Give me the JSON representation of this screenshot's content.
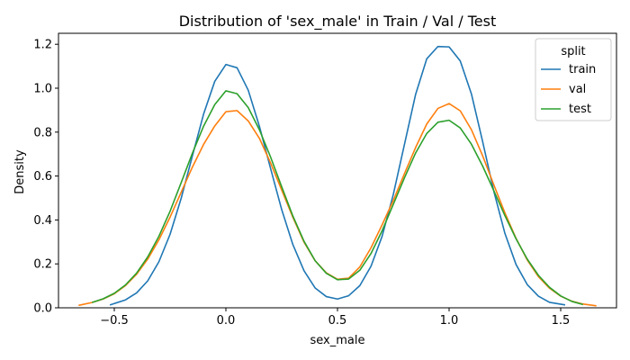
{
  "chart_data": {
    "type": "line",
    "title": "Distribution of 'sex_male' in Train / Val / Test",
    "xlabel": "sex_male",
    "ylabel": "Density",
    "xlim": [
      -0.75,
      1.75
    ],
    "ylim": [
      0,
      1.25
    ],
    "x_ticks": [
      -0.5,
      0.0,
      0.5,
      1.0,
      1.5
    ],
    "x_tick_labels": [
      "−0.5",
      "0.0",
      "0.5",
      "1.0",
      "1.5"
    ],
    "y_ticks": [
      0.0,
      0.2,
      0.4,
      0.6,
      0.8,
      1.0,
      1.2
    ],
    "y_tick_labels": [
      "0.0",
      "0.2",
      "0.4",
      "0.6",
      "0.8",
      "1.0",
      "1.2"
    ],
    "grid": false,
    "legend": {
      "title": "split",
      "placement": "top-right"
    },
    "series": [
      {
        "name": "train",
        "color": "#1f77b4",
        "x": [
          -0.52,
          -0.45,
          -0.4,
          -0.35,
          -0.3,
          -0.25,
          -0.2,
          -0.15,
          -0.1,
          -0.05,
          0.0,
          0.05,
          0.1,
          0.15,
          0.2,
          0.25,
          0.3,
          0.35,
          0.4,
          0.45,
          0.5,
          0.55,
          0.6,
          0.65,
          0.7,
          0.75,
          0.8,
          0.85,
          0.9,
          0.95,
          1.0,
          1.05,
          1.1,
          1.15,
          1.2,
          1.25,
          1.3,
          1.35,
          1.4,
          1.45,
          1.52
        ],
        "y": [
          0.013,
          0.036,
          0.068,
          0.123,
          0.21,
          0.335,
          0.5,
          0.692,
          0.882,
          1.031,
          1.108,
          1.093,
          0.991,
          0.827,
          0.635,
          0.447,
          0.288,
          0.169,
          0.09,
          0.051,
          0.04,
          0.055,
          0.101,
          0.189,
          0.326,
          0.516,
          0.744,
          0.972,
          1.134,
          1.19,
          1.188,
          1.124,
          0.974,
          0.758,
          0.532,
          0.339,
          0.197,
          0.106,
          0.053,
          0.025,
          0.013
        ]
      },
      {
        "name": "val",
        "color": "#ff7f0e",
        "x": [
          -0.66,
          -0.6,
          -0.55,
          -0.5,
          -0.45,
          -0.4,
          -0.35,
          -0.3,
          -0.25,
          -0.2,
          -0.15,
          -0.1,
          -0.05,
          0.0,
          0.05,
          0.1,
          0.15,
          0.2,
          0.25,
          0.3,
          0.35,
          0.4,
          0.45,
          0.5,
          0.55,
          0.6,
          0.65,
          0.7,
          0.75,
          0.8,
          0.85,
          0.9,
          0.95,
          1.0,
          1.05,
          1.1,
          1.15,
          1.2,
          1.25,
          1.3,
          1.35,
          1.4,
          1.45,
          1.5,
          1.55,
          1.6,
          1.66
        ],
        "y": [
          0.011,
          0.024,
          0.04,
          0.064,
          0.101,
          0.153,
          0.222,
          0.31,
          0.413,
          0.527,
          0.641,
          0.744,
          0.828,
          0.893,
          0.898,
          0.851,
          0.772,
          0.66,
          0.536,
          0.412,
          0.299,
          0.214,
          0.159,
          0.13,
          0.135,
          0.186,
          0.273,
          0.378,
          0.489,
          0.611,
          0.73,
          0.837,
          0.908,
          0.93,
          0.897,
          0.811,
          0.693,
          0.561,
          0.432,
          0.316,
          0.218,
          0.142,
          0.089,
          0.053,
          0.03,
          0.017,
          0.009
        ]
      },
      {
        "name": "test",
        "color": "#2ca02c",
        "x": [
          -0.6,
          -0.55,
          -0.5,
          -0.45,
          -0.4,
          -0.35,
          -0.3,
          -0.25,
          -0.2,
          -0.15,
          -0.1,
          -0.05,
          0.0,
          0.05,
          0.1,
          0.15,
          0.2,
          0.25,
          0.3,
          0.35,
          0.4,
          0.45,
          0.5,
          0.55,
          0.6,
          0.65,
          0.7,
          0.75,
          0.8,
          0.85,
          0.9,
          0.95,
          1.0,
          1.05,
          1.1,
          1.15,
          1.2,
          1.25,
          1.3,
          1.35,
          1.4,
          1.45,
          1.5,
          1.55,
          1.6
        ],
        "y": [
          0.024,
          0.041,
          0.066,
          0.104,
          0.158,
          0.232,
          0.326,
          0.44,
          0.571,
          0.704,
          0.827,
          0.925,
          0.988,
          0.975,
          0.912,
          0.811,
          0.687,
          0.551,
          0.418,
          0.303,
          0.214,
          0.157,
          0.128,
          0.131,
          0.171,
          0.247,
          0.351,
          0.471,
          0.592,
          0.705,
          0.794,
          0.845,
          0.854,
          0.819,
          0.745,
          0.646,
          0.534,
          0.42,
          0.314,
          0.222,
          0.148,
          0.093,
          0.054,
          0.029,
          0.015
        ]
      }
    ]
  }
}
